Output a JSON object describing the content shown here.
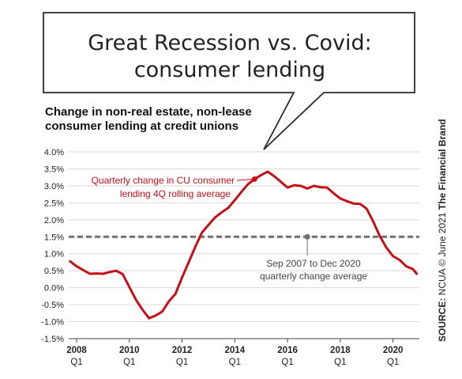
{
  "bubble": {
    "title_line1": "Great Recession vs. Covid:",
    "title_line2": "consumer lending"
  },
  "subtitle": {
    "line1": "Change in non-real estate, non-lease",
    "line2": "consumer lending at credit unions"
  },
  "source": {
    "prefix": "SOURCE:",
    "middle": " NCUA © June 2021 ",
    "brand": "The Financial Brand"
  },
  "annotations": {
    "series": {
      "line1": "Quarterly change in CU consumer",
      "line2": "lending 4Q rolling average"
    },
    "average": {
      "line1": "Sep 2007 to Dec 2020",
      "line2": "quarterly change average"
    }
  },
  "colors": {
    "series": "#c40f17",
    "average": "#707070",
    "grid": "#d9d9d9"
  },
  "chart_data": {
    "type": "line",
    "y_tick_labels": [
      "4.0%",
      "3.5%",
      "3.0%",
      "2.5%",
      "2.0%",
      "1.5%",
      "1.0%",
      "0.5%",
      "0.0%",
      "-0.5%",
      "-1.0%",
      "-1.5%"
    ],
    "y_ticks": [
      4.0,
      3.5,
      3.0,
      2.5,
      2.0,
      1.5,
      1.0,
      0.5,
      0.0,
      -0.5,
      -1.0,
      -1.5
    ],
    "ylim": [
      -1.5,
      4.0
    ],
    "xlim": [
      2007.7,
      2021.0
    ],
    "x_tick_labels": [
      {
        "year": "2008",
        "q": "Q1"
      },
      {
        "year": "2010",
        "q": "Q1"
      },
      {
        "year": "2012",
        "q": "Q1"
      },
      {
        "year": "2014",
        "q": "Q1"
      },
      {
        "year": "2016",
        "q": "Q1"
      },
      {
        "year": "2018",
        "q": "Q1"
      },
      {
        "year": "2020",
        "q": "Q1"
      }
    ],
    "x_tick_positions": [
      2008,
      2010,
      2012,
      2014,
      2016,
      2018,
      2020
    ],
    "grid": true,
    "average_value": 1.5,
    "series": [
      {
        "values": [
          [
            2007.75,
            0.78
          ],
          [
            2008.0,
            0.63
          ],
          [
            2008.25,
            0.52
          ],
          [
            2008.5,
            0.41
          ],
          [
            2008.75,
            0.42
          ],
          [
            2009.0,
            0.41
          ],
          [
            2009.25,
            0.46
          ],
          [
            2009.5,
            0.5
          ],
          [
            2009.75,
            0.4
          ],
          [
            2010.0,
            0.02
          ],
          [
            2010.25,
            -0.35
          ],
          [
            2010.5,
            -0.65
          ],
          [
            2010.75,
            -0.9
          ],
          [
            2011.0,
            -0.82
          ],
          [
            2011.25,
            -0.7
          ],
          [
            2011.5,
            -0.4
          ],
          [
            2011.75,
            -0.18
          ],
          [
            2012.0,
            0.3
          ],
          [
            2012.25,
            0.75
          ],
          [
            2012.5,
            1.2
          ],
          [
            2012.75,
            1.62
          ],
          [
            2013.0,
            1.85
          ],
          [
            2013.25,
            2.07
          ],
          [
            2013.5,
            2.22
          ],
          [
            2013.75,
            2.35
          ],
          [
            2014.0,
            2.58
          ],
          [
            2014.25,
            2.82
          ],
          [
            2014.5,
            3.05
          ],
          [
            2014.75,
            3.2
          ],
          [
            2015.0,
            3.32
          ],
          [
            2015.25,
            3.42
          ],
          [
            2015.5,
            3.28
          ],
          [
            2015.75,
            3.12
          ],
          [
            2016.0,
            2.95
          ],
          [
            2016.25,
            3.02
          ],
          [
            2016.5,
            3.0
          ],
          [
            2016.75,
            2.92
          ],
          [
            2017.0,
            3.0
          ],
          [
            2017.25,
            2.96
          ],
          [
            2017.5,
            2.95
          ],
          [
            2017.75,
            2.78
          ],
          [
            2018.0,
            2.63
          ],
          [
            2018.25,
            2.55
          ],
          [
            2018.5,
            2.48
          ],
          [
            2018.75,
            2.47
          ],
          [
            2019.0,
            2.33
          ],
          [
            2019.25,
            1.95
          ],
          [
            2019.5,
            1.52
          ],
          [
            2019.75,
            1.18
          ],
          [
            2020.0,
            0.93
          ],
          [
            2020.25,
            0.82
          ],
          [
            2020.5,
            0.63
          ],
          [
            2020.75,
            0.55
          ],
          [
            2020.9,
            0.41
          ]
        ]
      }
    ]
  }
}
